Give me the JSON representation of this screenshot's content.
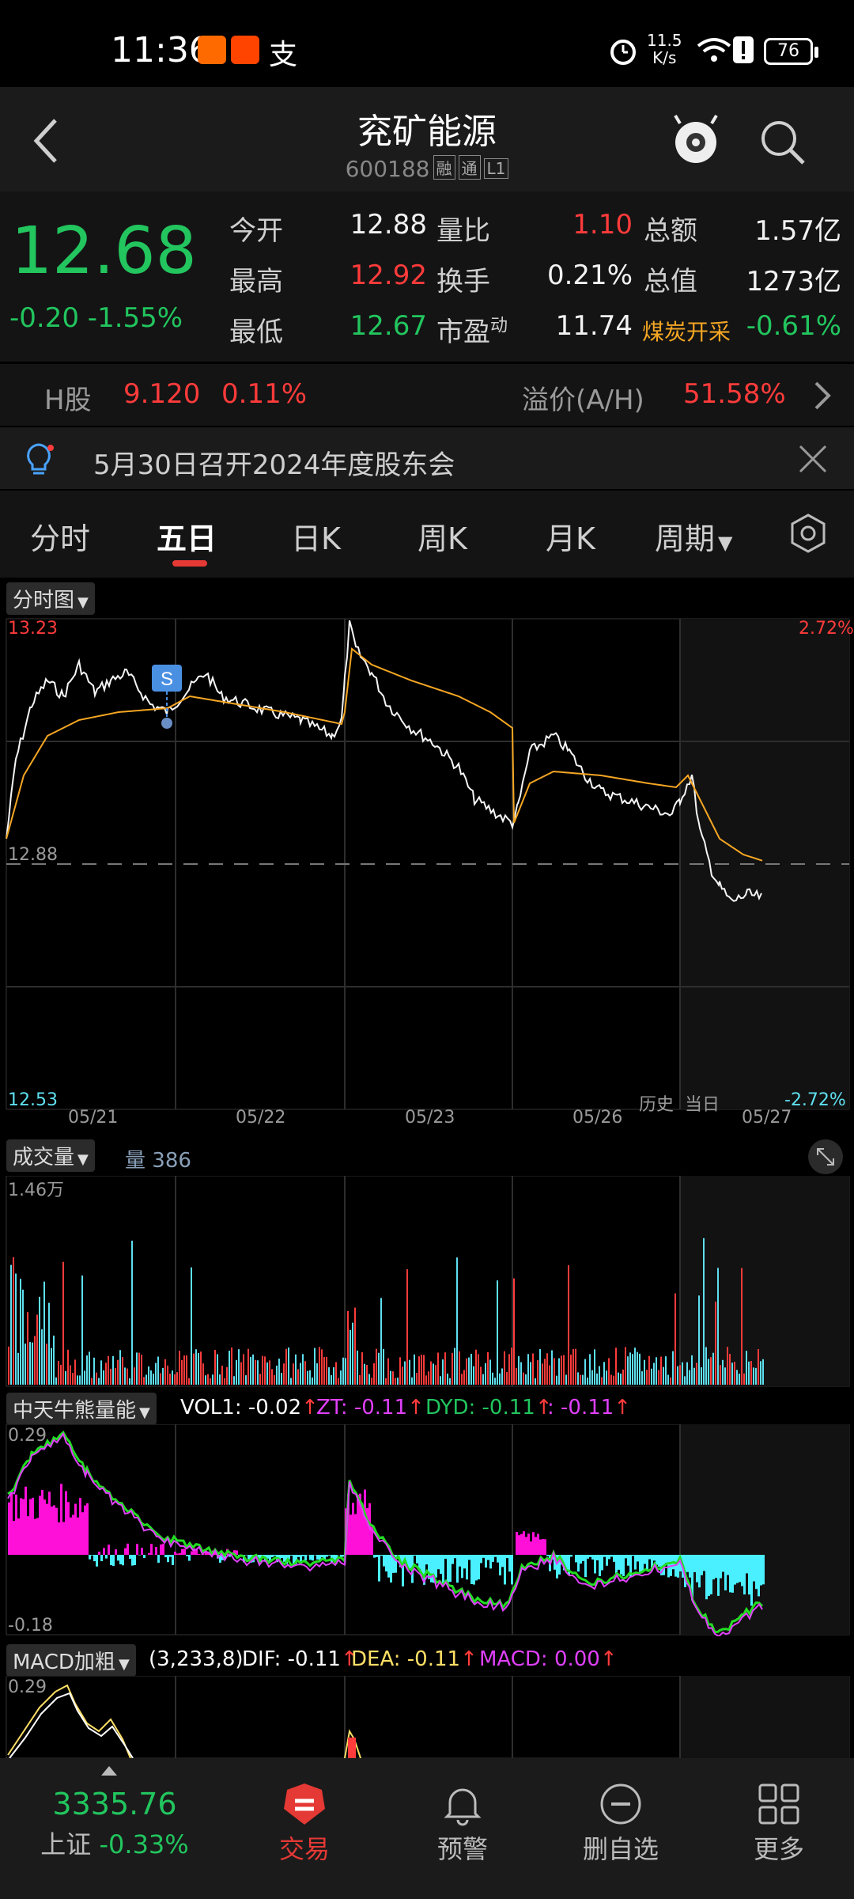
{
  "status": {
    "time": "11:36",
    "net_speed": "11.5",
    "net_unit": "K/s",
    "battery": "76"
  },
  "header": {
    "title": "兖矿能源",
    "code": "600188",
    "tags": [
      "融",
      "通",
      "L1"
    ]
  },
  "quote": {
    "price": "12.68",
    "change": "-0.20",
    "change_pct": "-1.55%",
    "rows": [
      {
        "l1": "今开",
        "v1": "12.88",
        "l2": "量比",
        "v2": "1.10",
        "l3": "总额",
        "v3": "1.57亿"
      },
      {
        "l1": "最高",
        "v1": "12.92",
        "l2": "换手",
        "v2": "0.21%",
        "l3": "总值",
        "v3": "1273亿"
      },
      {
        "l1": "最低",
        "v1": "12.67",
        "l2": "市盈",
        "l2sup": "动",
        "v2": "11.74",
        "l3": "煤炭开采",
        "v3": "-0.61%"
      }
    ]
  },
  "hshare": {
    "label": "H股",
    "price": "9.120",
    "pct": "0.11%",
    "premium_label": "溢价(A/H)",
    "premium": "51.58%"
  },
  "notice": {
    "text": "5月30日召开2024年度股东会"
  },
  "tabs": [
    "分时",
    "五日",
    "日K",
    "周K",
    "月K",
    "周期"
  ],
  "chart": {
    "selector": "分时图",
    "y_top": "13.23",
    "y_mid": "12.88",
    "y_bot": "12.53",
    "pct_top": "2.72%",
    "pct_bot": "-2.72%",
    "dates": [
      "05/21",
      "05/22",
      "05/23",
      "05/26",
      "05/27"
    ],
    "hist_label": "历史",
    "today_label": "当日",
    "marker": "S"
  },
  "volume": {
    "selector": "成交量",
    "label": "量",
    "value": "386",
    "ymax": "1.46万"
  },
  "indicator1": {
    "selector": "中天牛熊量能",
    "vol1": "VOL1: -0.02",
    "zt": "ZT: -0.11",
    "dyd": "DYD: -0.11",
    "extra": ": -0.11",
    "ytop": "0.29",
    "ybot": "-0.18"
  },
  "indicator2": {
    "selector": "MACD加粗",
    "params": "(3,233,8)",
    "dif": "DIF: -0.11",
    "dea": "DEA: -0.11",
    "macd": "MACD: 0.00",
    "ytop": "0.29"
  },
  "bottom": {
    "index_value": "3335.76",
    "index_name": "上证",
    "index_pct": "-0.33%",
    "items": [
      "交易",
      "预警",
      "删自选",
      "更多"
    ]
  },
  "colors": {
    "up": "#ff3b3b",
    "down": "#22c55e",
    "avg": "#f5a623",
    "accent": "#e53935"
  }
}
